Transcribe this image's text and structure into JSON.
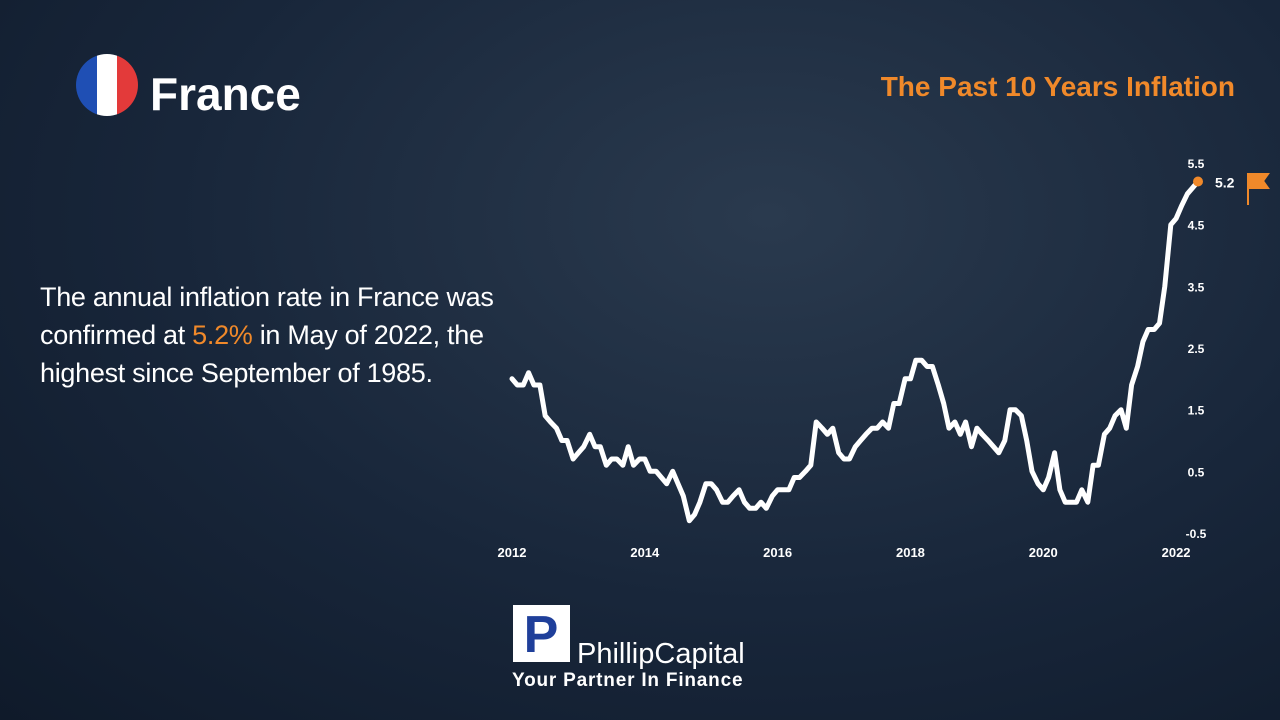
{
  "header": {
    "country": "France",
    "title": "The Past 10 Years Inflation"
  },
  "body": {
    "text_before": "The annual inflation rate in France was confirmed at ",
    "highlight": "5.2%",
    "text_after": " in May of 2022, the highest since September of 1985."
  },
  "logo": {
    "mark": "P",
    "name": "PhillipCapital",
    "tagline": "Your Partner In Finance"
  },
  "chart_data": {
    "type": "line",
    "x": [
      2012,
      2012.08,
      2012.17,
      2012.25,
      2012.33,
      2012.42,
      2012.5,
      2012.58,
      2012.67,
      2012.75,
      2012.83,
      2012.92,
      2013,
      2013.08,
      2013.17,
      2013.25,
      2013.33,
      2013.42,
      2013.5,
      2013.58,
      2013.67,
      2013.75,
      2013.83,
      2013.92,
      2014,
      2014.08,
      2014.17,
      2014.25,
      2014.33,
      2014.42,
      2014.5,
      2014.58,
      2014.67,
      2014.75,
      2014.83,
      2014.92,
      2015,
      2015.08,
      2015.17,
      2015.25,
      2015.33,
      2015.42,
      2015.5,
      2015.58,
      2015.67,
      2015.75,
      2015.83,
      2015.92,
      2016,
      2016.08,
      2016.17,
      2016.25,
      2016.33,
      2016.42,
      2016.5,
      2016.58,
      2016.67,
      2016.75,
      2016.83,
      2016.92,
      2017,
      2017.08,
      2017.17,
      2017.25,
      2017.33,
      2017.42,
      2017.5,
      2017.58,
      2017.67,
      2017.75,
      2017.83,
      2017.92,
      2018,
      2018.08,
      2018.17,
      2018.25,
      2018.33,
      2018.42,
      2018.5,
      2018.58,
      2018.67,
      2018.75,
      2018.83,
      2018.92,
      2019,
      2019.08,
      2019.17,
      2019.25,
      2019.33,
      2019.42,
      2019.5,
      2019.58,
      2019.67,
      2019.75,
      2019.83,
      2019.92,
      2020,
      2020.08,
      2020.17,
      2020.25,
      2020.33,
      2020.42,
      2020.5,
      2020.58,
      2020.67,
      2020.75,
      2020.83,
      2020.92,
      2021,
      2021.08,
      2021.17,
      2021.25,
      2021.33,
      2021.42,
      2021.5,
      2021.58,
      2021.67,
      2021.75,
      2021.83,
      2021.92,
      2022,
      2022.08,
      2022.17,
      2022.25,
      2022.33
    ],
    "series": [
      {
        "color": "#ffffff",
        "values": [
          2.0,
          1.9,
          1.9,
          2.1,
          1.9,
          1.9,
          1.4,
          1.3,
          1.2,
          1.0,
          1.0,
          0.7,
          0.8,
          0.9,
          1.1,
          0.9,
          0.9,
          0.6,
          0.7,
          0.7,
          0.6,
          0.9,
          0.6,
          0.7,
          0.7,
          0.5,
          0.5,
          0.4,
          0.3,
          0.5,
          0.3,
          0.1,
          -0.3,
          -0.2,
          0.0,
          0.3,
          0.3,
          0.2,
          0.0,
          0.0,
          0.1,
          0.2,
          0.0,
          -0.1,
          -0.1,
          0.0,
          -0.1,
          0.1,
          0.2,
          0.2,
          0.2,
          0.4,
          0.4,
          0.5,
          0.6,
          1.3,
          1.2,
          1.1,
          1.2,
          0.8,
          0.7,
          0.7,
          0.9,
          1.0,
          1.1,
          1.2,
          1.2,
          1.3,
          1.2,
          1.6,
          1.6,
          2.0,
          2.0,
          2.3,
          2.3,
          2.2,
          2.2,
          1.9,
          1.6,
          1.2,
          1.3,
          1.1,
          1.3,
          0.9,
          1.2,
          1.1,
          1.0,
          0.9,
          0.8,
          1.0,
          1.5,
          1.5,
          1.4,
          1.0,
          0.5,
          0.3,
          0.2,
          0.4,
          0.8,
          0.2,
          0.0,
          0.0,
          0.0,
          0.2,
          0.0,
          0.6,
          0.6,
          1.1,
          1.2,
          1.4,
          1.5,
          1.2,
          1.9,
          2.2,
          2.6,
          2.8,
          2.8,
          2.9,
          3.5,
          4.5,
          4.6,
          4.8,
          5.0,
          5.1,
          5.2
        ]
      }
    ],
    "xlim": [
      2012,
      2022.33
    ],
    "xticks": [
      2012,
      2014,
      2016,
      2018,
      2020,
      2022
    ],
    "ylim": [
      -0.5,
      5.5
    ],
    "yticks": [
      -0.5,
      0.5,
      1.5,
      2.5,
      3.5,
      4.5,
      5.5
    ],
    "grid": false,
    "marker_color": "#f0892a"
  }
}
